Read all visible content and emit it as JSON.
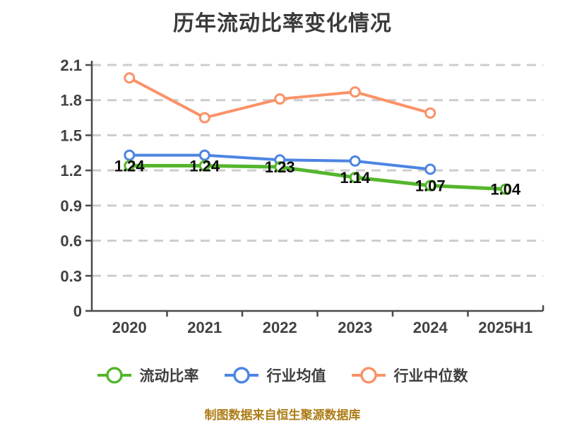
{
  "footer": {
    "text": "制图数据来自恒生聚源数据库"
  },
  "palette": {
    "background": "#FFFFFF",
    "grid": "#CDCDCD",
    "axis": "#4A4A4A",
    "tick_label": "#414141",
    "data_label": "#0C0C0C",
    "title_text": "#3A3A3A",
    "legend_text": "#3E3E3E",
    "footer_text": "#AC7C15",
    "marker_fill": "#FFFFFF"
  },
  "chart_data": {
    "type": "line",
    "title": "历年流动比率变化情况",
    "categories": [
      "2020",
      "2021",
      "2022",
      "2023",
      "2024",
      "2025H1"
    ],
    "y_axis": {
      "min": 0,
      "max": 2.1,
      "tick_step": 0.3,
      "ticks": [
        "0",
        "0.3",
        "0.6",
        "0.9",
        "1.2",
        "1.5",
        "1.8",
        "2.1"
      ]
    },
    "grid": "horizontal-dashed",
    "legend_position": "bottom",
    "series": [
      {
        "id": "industry-median",
        "name": "行业中位数",
        "color": "#FA9268",
        "values": [
          1.99,
          1.65,
          1.81,
          1.87,
          1.69,
          null
        ],
        "show_labels": false
      },
      {
        "id": "industry-average",
        "name": "行业均值",
        "color": "#4C85E2",
        "values": [
          1.33,
          1.33,
          1.29,
          1.28,
          1.21,
          null
        ],
        "show_labels": false
      },
      {
        "id": "current-ratio",
        "name": "流动比率",
        "color": "#54B62C",
        "values": [
          1.24,
          1.24,
          1.23,
          1.14,
          1.07,
          1.04
        ],
        "show_labels": true,
        "labels": [
          "1.24",
          "1.24",
          "1.23",
          "1.14",
          "1.07",
          "1.04"
        ]
      }
    ]
  }
}
